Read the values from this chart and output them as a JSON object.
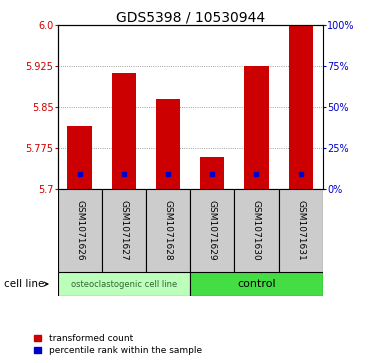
{
  "title": "GDS5398 / 10530944",
  "samples": [
    "GSM1071626",
    "GSM1071627",
    "GSM1071628",
    "GSM1071629",
    "GSM1071630",
    "GSM1071631"
  ],
  "bar_values": [
    5.815,
    5.912,
    5.865,
    5.758,
    5.925,
    6.0
  ],
  "percentile_values": [
    5.727,
    5.727,
    5.727,
    5.727,
    5.727,
    5.727
  ],
  "ymin": 5.7,
  "ymax": 6.0,
  "yticks_left": [
    5.7,
    5.775,
    5.85,
    5.925,
    6.0
  ],
  "yticks_right_pct": [
    0,
    25,
    50,
    75,
    100
  ],
  "yticks_right_vals": [
    5.7,
    5.775,
    5.85,
    5.925,
    6.0
  ],
  "bar_color": "#cc0000",
  "percentile_color": "#0000cc",
  "bar_width": 0.55,
  "group1_label": "osteoclastogenic cell line",
  "group2_label": "control",
  "cell_line_label": "cell line",
  "legend_bar_label": "transformed count",
  "legend_pct_label": "percentile rank within the sample",
  "group1_bg": "#bbffbb",
  "group2_bg": "#44dd44",
  "sample_box_bg": "#cccccc",
  "title_fontsize": 10,
  "tick_fontsize": 7,
  "sample_fontsize": 6.5
}
